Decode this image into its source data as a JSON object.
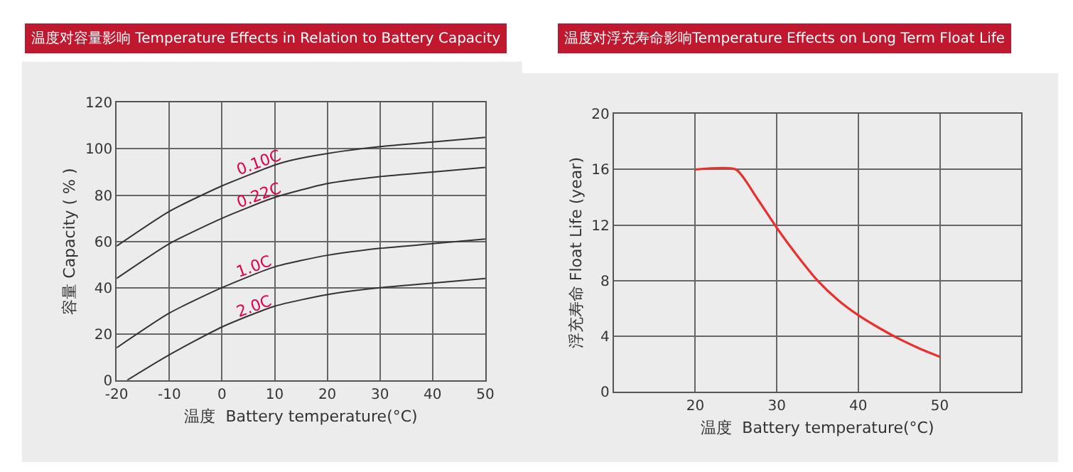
{
  "chart_data": [
    {
      "type": "line",
      "title": "温度对容量影响 Temperature Effects in Relation to Battery Capacity",
      "xlabel": "温度  Battery temperature(°C)",
      "ylabel": "容量 Capacity ( % )",
      "xlim": [
        -20,
        50
      ],
      "xticks": [
        -20,
        -10,
        0,
        10,
        20,
        30,
        40,
        50
      ],
      "ylim": [
        0,
        120
      ],
      "yticks": [
        0,
        20,
        40,
        60,
        80,
        100,
        120
      ],
      "grid": true,
      "legend": false,
      "marker": "none",
      "line_style": "solid",
      "series": [
        {
          "name": "0.10C",
          "color": "#333333",
          "x": [
            -20,
            -10,
            0,
            10,
            13,
            20,
            30,
            40,
            50
          ],
          "values": [
            58,
            73,
            84,
            93,
            95,
            98,
            101,
            103,
            105
          ]
        },
        {
          "name": "0.22C",
          "color": "#333333",
          "x": [
            -20,
            -10,
            0,
            10,
            20,
            30,
            40,
            50
          ],
          "values": [
            44,
            59,
            70,
            79,
            85,
            88,
            90,
            92
          ]
        },
        {
          "name": "1.0C",
          "color": "#333333",
          "x": [
            -20,
            -10,
            0,
            10,
            20,
            30,
            40,
            50
          ],
          "values": [
            14,
            29,
            40,
            49,
            54,
            57,
            59,
            61
          ]
        },
        {
          "name": "2.0C",
          "color": "#333333",
          "x": [
            -18,
            -10,
            0,
            10,
            20,
            30,
            40,
            50
          ],
          "values": [
            0,
            11,
            23,
            32,
            37,
            40,
            42,
            44
          ]
        }
      ]
    },
    {
      "type": "line",
      "title": "温度对浮充寿命影响Temperature Effects on Long Term Float Life",
      "xlabel": "温度  Battery temperature(°C)",
      "ylabel": "浮充寿命 Float Life (year)",
      "xlim": [
        10,
        60
      ],
      "xticks": [
        20,
        30,
        40,
        50
      ],
      "ylim": [
        0,
        20
      ],
      "yticks": [
        0,
        4,
        8,
        12,
        16,
        20
      ],
      "grid": true,
      "legend": false,
      "marker": "none",
      "line_style": "solid",
      "series": [
        {
          "color": "#e8312f",
          "x": [
            20,
            25,
            27.5,
            30,
            32.5,
            35,
            37.5,
            40,
            42.5,
            45,
            47.5,
            50
          ],
          "values": [
            16,
            16,
            14,
            11.8,
            9.8,
            8,
            6.6,
            5.5,
            4.6,
            3.8,
            3.1,
            2.5
          ]
        }
      ]
    }
  ]
}
